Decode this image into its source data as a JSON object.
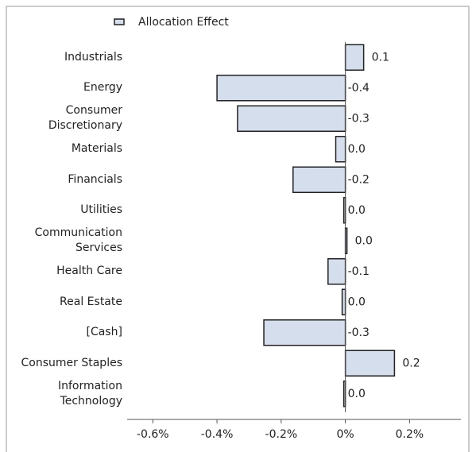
{
  "chart_data": {
    "type": "bar",
    "orientation": "horizontal",
    "legend": "top",
    "series": [
      {
        "name": "Allocation Effect",
        "color": "#d4deed",
        "values": [
          0.057,
          -0.4,
          -0.336,
          -0.03,
          -0.163,
          -0.005,
          0.005,
          -0.054,
          -0.01,
          -0.254,
          0.153,
          -0.005
        ],
        "value_labels": [
          "0.1",
          "-0.4",
          "-0.3",
          "0.0",
          "-0.2",
          "0.0",
          "0.0",
          "-0.1",
          "0.0",
          "-0.3",
          "0.2",
          "0.0"
        ]
      }
    ],
    "categories": [
      "Industrials",
      "Energy",
      "Consumer Discretionary",
      "Materials",
      "Financials",
      "Utilities",
      "Communication Services",
      "Health Care",
      "Real Estate",
      "[Cash]",
      "Consumer Staples",
      "Information Technology"
    ],
    "xlim": [
      -0.68,
      0.36
    ],
    "xticks": [
      {
        "value": -0.6,
        "label": "-0.6%"
      },
      {
        "value": -0.4,
        "label": "-0.4%"
      },
      {
        "value": -0.2,
        "label": "-0.2%"
      },
      {
        "value": 0,
        "label": "0%"
      },
      {
        "value": 0.2,
        "label": "0.2%"
      }
    ]
  }
}
